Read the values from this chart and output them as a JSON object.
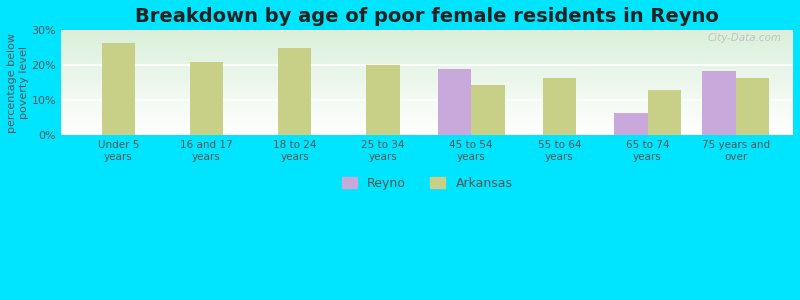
{
  "title": "Breakdown by age of poor female residents in Reyno",
  "ylabel": "percentage below\npoverty level",
  "categories": [
    "Under 5\nyears",
    "16 and 17\nyears",
    "18 to 24\nyears",
    "25 to 34\nyears",
    "45 to 54\nyears",
    "55 to 64\nyears",
    "65 to 74\nyears",
    "75 years and\nover"
  ],
  "reyno_values": [
    null,
    null,
    null,
    null,
    19.0,
    null,
    6.5,
    18.5
  ],
  "arkansas_values": [
    26.5,
    21.0,
    25.0,
    20.0,
    14.5,
    16.5,
    13.0,
    16.5
  ],
  "reyno_color": "#c9a8dc",
  "arkansas_color": "#c8cf87",
  "outer_bg": "#00e5ff",
  "ylim": [
    0,
    30
  ],
  "yticks": [
    0,
    10,
    20,
    30
  ],
  "ytick_labels": [
    "0%",
    "10%",
    "20%",
    "30%"
  ],
  "title_fontsize": 14,
  "bar_width": 0.38,
  "watermark": "City-Data.com"
}
